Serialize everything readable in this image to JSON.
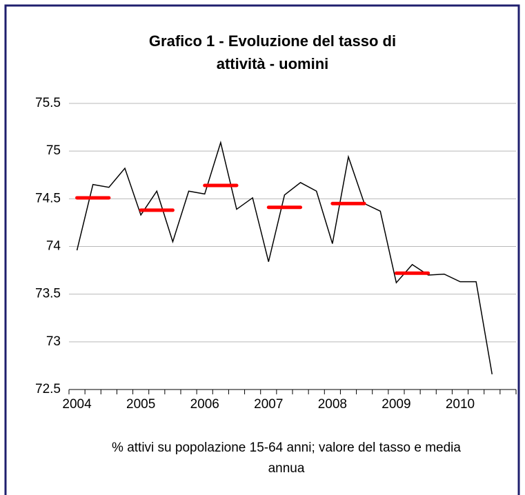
{
  "chart_data": {
    "type": "line",
    "title": [
      "Grafico 1 - Evoluzione del tasso di",
      "attività - uomini"
    ],
    "caption": [
      "% attivi su popolazione 15-64 anni; valore del tasso e media",
      "annua"
    ],
    "categories": [
      "2004",
      null,
      null,
      null,
      "2005",
      null,
      null,
      null,
      "2006",
      null,
      null,
      null,
      "2007",
      null,
      null,
      null,
      "2008",
      null,
      null,
      null,
      "2009",
      null,
      null,
      null,
      "2010",
      null,
      null,
      null
    ],
    "series": [
      {
        "color": "#000000",
        "values": [
          73.96,
          74.65,
          74.62,
          74.82,
          74.33,
          74.58,
          74.05,
          74.58,
          74.55,
          75.09,
          74.39,
          74.51,
          73.84,
          74.54,
          74.67,
          74.58,
          74.03,
          74.94,
          74.45,
          74.37,
          73.62,
          73.81,
          73.7,
          73.71,
          73.63,
          73.63,
          72.66,
          null
        ]
      },
      {
        "color": "#ff0000",
        "values": [
          74.51,
          null,
          null,
          null,
          74.38,
          null,
          null,
          null,
          74.64,
          null,
          null,
          null,
          74.41,
          null,
          null,
          null,
          74.45,
          null,
          null,
          null,
          73.72,
          null,
          null,
          null,
          null,
          null,
          null,
          null
        ]
      }
    ],
    "ylim": [
      72.5,
      75.5
    ],
    "yticks": [
      72.5,
      73,
      73.5,
      74,
      74.5,
      75,
      75.5
    ],
    "grid": true
  }
}
